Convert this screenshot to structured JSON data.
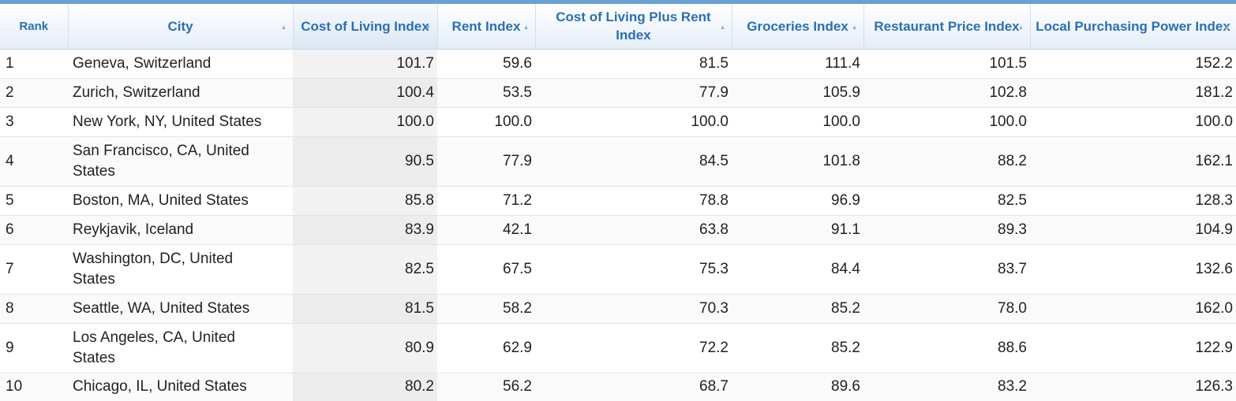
{
  "table": {
    "headers": [
      {
        "label": "Rank",
        "sort": ""
      },
      {
        "label": "City",
        "sort": "▲"
      },
      {
        "label": "Cost of Living Index",
        "sort": "▼"
      },
      {
        "label": "Rent Index",
        "sort": "▲"
      },
      {
        "label": "Cost of Living Plus Rent Index",
        "sort": "▲"
      },
      {
        "label": "Groceries Index",
        "sort": "▲"
      },
      {
        "label": "Restaurant Price Index",
        "sort": "▲"
      },
      {
        "label": "Local Purchasing Power Index",
        "sort": "▲"
      }
    ],
    "rows": [
      {
        "rank": "1",
        "city": "Geneva, Switzerland",
        "col": "101.7",
        "rent": "59.6",
        "colr": "81.5",
        "groc": "111.4",
        "rest": "101.5",
        "lpp": "152.2"
      },
      {
        "rank": "2",
        "city": "Zurich, Switzerland",
        "col": "100.4",
        "rent": "53.5",
        "colr": "77.9",
        "groc": "105.9",
        "rest": "102.8",
        "lpp": "181.2"
      },
      {
        "rank": "3",
        "city": "New York, NY, United States",
        "col": "100.0",
        "rent": "100.0",
        "colr": "100.0",
        "groc": "100.0",
        "rest": "100.0",
        "lpp": "100.0"
      },
      {
        "rank": "4",
        "city": "San Francisco, CA, United States",
        "col": "90.5",
        "rent": "77.9",
        "colr": "84.5",
        "groc": "101.8",
        "rest": "88.2",
        "lpp": "162.1"
      },
      {
        "rank": "5",
        "city": "Boston, MA, United States",
        "col": "85.8",
        "rent": "71.2",
        "colr": "78.8",
        "groc": "96.9",
        "rest": "82.5",
        "lpp": "128.3"
      },
      {
        "rank": "6",
        "city": "Reykjavik, Iceland",
        "col": "83.9",
        "rent": "42.1",
        "colr": "63.8",
        "groc": "91.1",
        "rest": "89.3",
        "lpp": "104.9"
      },
      {
        "rank": "7",
        "city": "Washington, DC, United States",
        "col": "82.5",
        "rent": "67.5",
        "colr": "75.3",
        "groc": "84.4",
        "rest": "83.7",
        "lpp": "132.6"
      },
      {
        "rank": "8",
        "city": "Seattle, WA, United States",
        "col": "81.5",
        "rent": "58.2",
        "colr": "70.3",
        "groc": "85.2",
        "rest": "78.0",
        "lpp": "162.0"
      },
      {
        "rank": "9",
        "city": "Los Angeles, CA, United States",
        "col": "80.9",
        "rent": "62.9",
        "colr": "72.2",
        "groc": "85.2",
        "rest": "88.6",
        "lpp": "122.9"
      },
      {
        "rank": "10",
        "city": "Chicago, IL, United States",
        "col": "80.2",
        "rent": "56.2",
        "colr": "68.7",
        "groc": "89.6",
        "rest": "83.2",
        "lpp": "126.3"
      }
    ]
  }
}
